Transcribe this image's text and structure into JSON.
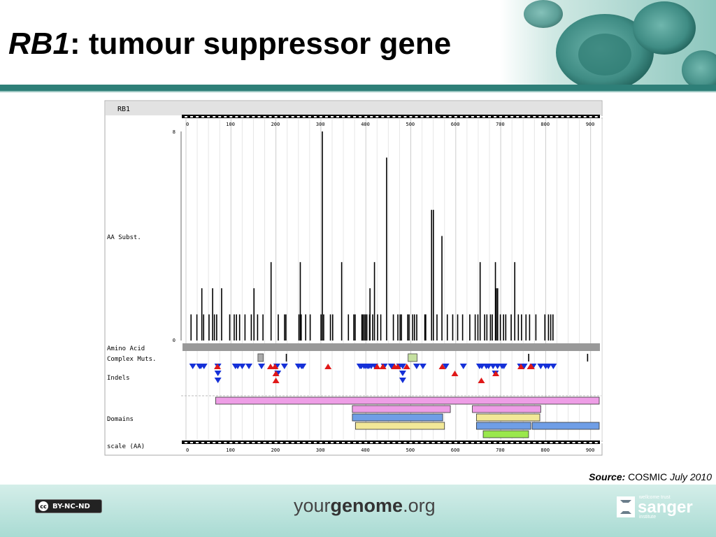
{
  "slide": {
    "title_gene": "RB1",
    "title_rest": ": tumour suppressor gene",
    "source_label": "Source",
    "source_sep": ":",
    "source_name": "COSMIC",
    "source_date": "July 2010",
    "footer_brand_pre": "your",
    "footer_brand_bold": "genome",
    "footer_brand_post": ".org",
    "license_text": "BY-NC-ND",
    "license_cc": "cc",
    "sanger_top": "wellcome trust",
    "sanger_name": "sanger",
    "sanger_bottom": "institute",
    "colors": {
      "teal_rule": "#2e7f78",
      "footer": "#a9dbd3",
      "header_cells": "#3f8c84"
    }
  },
  "chart_data": {
    "type": "bar",
    "title": "RB1",
    "ylabel": "AA Subst.",
    "xlabel": "scale (AA)",
    "ylim": [
      0,
      8
    ],
    "y_ticks": [
      0,
      8
    ],
    "xlim": [
      0,
      928
    ],
    "x_ticks": [
      0,
      100,
      200,
      300,
      400,
      500,
      600,
      700,
      800,
      900
    ],
    "track_labels": {
      "amino": "Amino Acid",
      "complex": "Complex Muts.",
      "indels": "Indels",
      "domains": "Domains",
      "scale": "scale (AA)"
    },
    "substitutions": [
      [
        10,
        1
      ],
      [
        23,
        1
      ],
      [
        34,
        2
      ],
      [
        38,
        1
      ],
      [
        50,
        1
      ],
      [
        58,
        2
      ],
      [
        62,
        1
      ],
      [
        67,
        1
      ],
      [
        78,
        2
      ],
      [
        96,
        1
      ],
      [
        106,
        1
      ],
      [
        111,
        1
      ],
      [
        118,
        1
      ],
      [
        130,
        1
      ],
      [
        144,
        1
      ],
      [
        150,
        2
      ],
      [
        158,
        1
      ],
      [
        170,
        1
      ],
      [
        188,
        3
      ],
      [
        204,
        1
      ],
      [
        218,
        1
      ],
      [
        221,
        1
      ],
      [
        250,
        1
      ],
      [
        253,
        3
      ],
      [
        255,
        1
      ],
      [
        265,
        1
      ],
      [
        275,
        1
      ],
      [
        299,
        1
      ],
      [
        302,
        8
      ],
      [
        305,
        1
      ],
      [
        320,
        1
      ],
      [
        325,
        1
      ],
      [
        345,
        3
      ],
      [
        360,
        1
      ],
      [
        372,
        1
      ],
      [
        375,
        1
      ],
      [
        390,
        1
      ],
      [
        392,
        1
      ],
      [
        395,
        1
      ],
      [
        398,
        1
      ],
      [
        401,
        1
      ],
      [
        407,
        1
      ],
      [
        408,
        2
      ],
      [
        414,
        1
      ],
      [
        418,
        3
      ],
      [
        425,
        1
      ],
      [
        432,
        1
      ],
      [
        445,
        7
      ],
      [
        460,
        1
      ],
      [
        470,
        1
      ],
      [
        475,
        1
      ],
      [
        478,
        1
      ],
      [
        492,
        1
      ],
      [
        495,
        1
      ],
      [
        503,
        1
      ],
      [
        507,
        1
      ],
      [
        512,
        1
      ],
      [
        530,
        1
      ],
      [
        532,
        1
      ],
      [
        545,
        5
      ],
      [
        549,
        5
      ],
      [
        557,
        1
      ],
      [
        568,
        4
      ],
      [
        580,
        1
      ],
      [
        592,
        1
      ],
      [
        603,
        1
      ],
      [
        614,
        1
      ],
      [
        630,
        1
      ],
      [
        642,
        1
      ],
      [
        648,
        1
      ],
      [
        653,
        3
      ],
      [
        663,
        1
      ],
      [
        668,
        1
      ],
      [
        676,
        1
      ],
      [
        680,
        1
      ],
      [
        687,
        3
      ],
      [
        689,
        2
      ],
      [
        692,
        2
      ],
      [
        698,
        1
      ],
      [
        705,
        1
      ],
      [
        710,
        1
      ],
      [
        722,
        1
      ],
      [
        730,
        3
      ],
      [
        738,
        1
      ],
      [
        745,
        1
      ],
      [
        755,
        1
      ],
      [
        763,
        1
      ],
      [
        777,
        1
      ],
      [
        797,
        1
      ],
      [
        805,
        1
      ],
      [
        810,
        1
      ],
      [
        815,
        1
      ]
    ],
    "complex_mutations": {
      "boxes": [
        [
          160,
          172,
          "#aaaaaa"
        ],
        [
          494,
          514,
          "#c5e0a0"
        ]
      ],
      "ticks": [
        222,
        761,
        892
      ]
    },
    "indels_deletion": [
      [
        15,
        1
      ],
      [
        33,
        1
      ],
      [
        30,
        1
      ],
      [
        40,
        1
      ],
      [
        71,
        1
      ],
      [
        71,
        2
      ],
      [
        71,
        3
      ],
      [
        110,
        1
      ],
      [
        115,
        1
      ],
      [
        125,
        1
      ],
      [
        140,
        1
      ],
      [
        168,
        1
      ],
      [
        202,
        1
      ],
      [
        204,
        2
      ],
      [
        219,
        1
      ],
      [
        250,
        1
      ],
      [
        257,
        1
      ],
      [
        260,
        1
      ],
      [
        387,
        1
      ],
      [
        390,
        1
      ],
      [
        396,
        1
      ],
      [
        400,
        1
      ],
      [
        404,
        1
      ],
      [
        407,
        1
      ],
      [
        412,
        1
      ],
      [
        420,
        1
      ],
      [
        441,
        1
      ],
      [
        457,
        1
      ],
      [
        475,
        1
      ],
      [
        482,
        1
      ],
      [
        482,
        2
      ],
      [
        482,
        3
      ],
      [
        513,
        1
      ],
      [
        527,
        1
      ],
      [
        578,
        1
      ],
      [
        617,
        1
      ],
      [
        653,
        1
      ],
      [
        658,
        1
      ],
      [
        668,
        1
      ],
      [
        673,
        1
      ],
      [
        683,
        1
      ],
      [
        688,
        2
      ],
      [
        693,
        1
      ],
      [
        703,
        1
      ],
      [
        707,
        1
      ],
      [
        744,
        1
      ],
      [
        747,
        1
      ],
      [
        752,
        1
      ],
      [
        772,
        1
      ],
      [
        789,
        1
      ],
      [
        800,
        1
      ],
      [
        806,
        1
      ],
      [
        817,
        1
      ]
    ],
    "indels_insertion": [
      [
        70,
        1
      ],
      [
        188,
        1
      ],
      [
        198,
        1
      ],
      [
        200,
        2
      ],
      [
        200,
        3
      ],
      [
        316,
        1
      ],
      [
        425,
        1
      ],
      [
        438,
        1
      ],
      [
        464,
        1
      ],
      [
        471,
        1
      ],
      [
        491,
        1
      ],
      [
        570,
        1
      ],
      [
        598,
        2
      ],
      [
        657,
        3
      ],
      [
        689,
        2
      ],
      [
        745,
        1
      ],
      [
        766,
        1
      ],
      [
        768,
        1
      ]
    ],
    "domains": [
      [
        66,
        928,
        0,
        "#ee9ee6"
      ],
      [
        370,
        588,
        1,
        "#ee9ee6"
      ],
      [
        637,
        789,
        1,
        "#ee9ee6"
      ],
      [
        370,
        571,
        2,
        "#6f9ee6"
      ],
      [
        646,
        787,
        2,
        "#f2e898"
      ],
      [
        377,
        575,
        3,
        "#f2e898"
      ],
      [
        646,
        767,
        3,
        "#6f9ee6"
      ],
      [
        770,
        928,
        3,
        "#6f9ee6"
      ],
      [
        661,
        762,
        4,
        "#9ae84c"
      ]
    ],
    "legend": "none"
  }
}
